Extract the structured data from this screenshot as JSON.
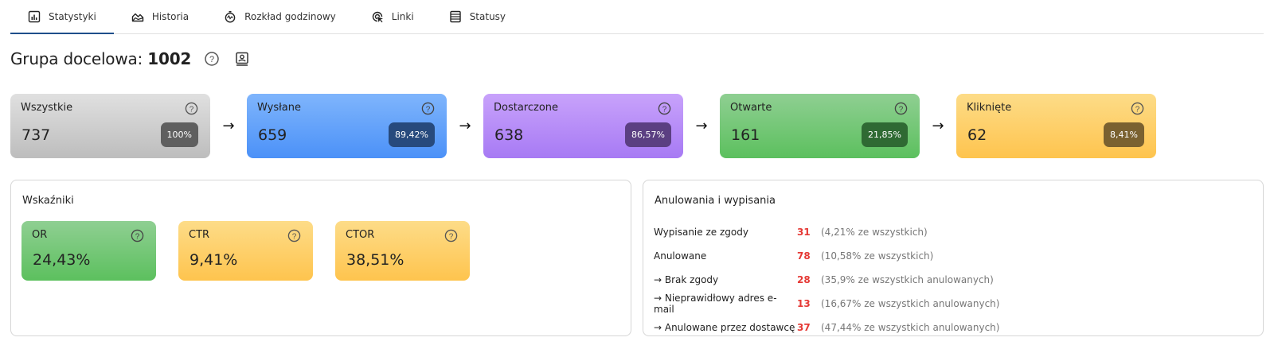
{
  "tabs": [
    {
      "label": "Statystyki",
      "icon": "bar-chart-icon",
      "active": true
    },
    {
      "label": "Historia",
      "icon": "area-chart-icon",
      "active": false
    },
    {
      "label": "Rozkład godzinowy",
      "icon": "stopwatch-icon",
      "active": false
    },
    {
      "label": "Linki",
      "icon": "link-click-icon",
      "active": false
    },
    {
      "label": "Statusy",
      "icon": "list-icon",
      "active": false
    }
  ],
  "header": {
    "title_prefix": "Grupa docelowa:",
    "title_value": "1002"
  },
  "funnel": [
    {
      "label": "Wszystkie",
      "value": "737",
      "badge": "100%",
      "badge_color": "#5f5f5f"
    },
    {
      "label": "Wysłane",
      "value": "659",
      "badge": "89,42%",
      "badge_color": "#274a7d"
    },
    {
      "label": "Dostarczone",
      "value": "638",
      "badge": "86,57%",
      "badge_color": "#5b3f82"
    },
    {
      "label": "Otwarte",
      "value": "161",
      "badge": "21,85%",
      "badge_color": "#2f6a33"
    },
    {
      "label": "Kliknięte",
      "value": "62",
      "badge": "8,41%",
      "badge_color": "#7a6130"
    }
  ],
  "funnel_arrow": "→",
  "indicators": {
    "title": "Wskaźniki",
    "items": [
      {
        "label": "OR",
        "value": "24,43%"
      },
      {
        "label": "CTR",
        "value": "9,41%"
      },
      {
        "label": "CTOR",
        "value": "38,51%"
      }
    ]
  },
  "cancellations": {
    "title": "Anulowania i wypisania",
    "rows": [
      {
        "label": "Wypisanie ze zgody",
        "count": "31",
        "desc": "(4,21% ze wszystkich)"
      },
      {
        "label": "Anulowane",
        "count": "78",
        "desc": "(10,58% ze wszystkich)"
      },
      {
        "label": "→ Brak zgody",
        "count": "28",
        "desc": "(35,9% ze wszystkich anulowanych)"
      },
      {
        "label": "→ Nieprawidłowy adres e-mail",
        "count": "13",
        "desc": "(16,67% ze wszystkich anulowanych)"
      },
      {
        "label": "→ Anulowane przez dostawcę",
        "count": "37",
        "desc": "(47,44% ze wszystkich anulowanych)"
      }
    ]
  }
}
